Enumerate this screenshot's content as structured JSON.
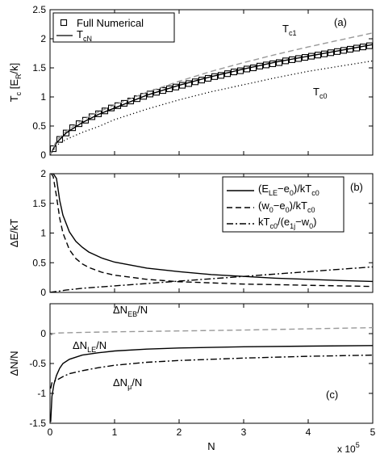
{
  "chart_data": [
    {
      "type": "line",
      "panel_label": "(a)",
      "ylabel": {
        "main": "T",
        "sub": "c",
        "rest": " [E",
        "sub2": "R",
        "rest2": "/k]"
      },
      "ylim": [
        0,
        2.5
      ],
      "yticks": [
        0,
        0.5,
        1,
        1.5,
        2,
        2.5
      ],
      "ytick_labels": [
        "0",
        "0.5",
        "1",
        "1.5",
        "2",
        "2.5"
      ],
      "xlim": [
        0,
        500000
      ],
      "grid": false,
      "legend": {
        "placement": "top-left",
        "entries": [
          {
            "label": "Full Numerical",
            "series": "full_numerical"
          },
          {
            "label_main": "T",
            "label_sub": "cN",
            "series": "tcn"
          }
        ]
      },
      "annotations": [
        {
          "main": "T",
          "sub": "c1",
          "series": "tc1"
        },
        {
          "main": "T",
          "sub": "c0",
          "series": "tc0"
        }
      ],
      "series": [
        {
          "id": "full_numerical",
          "name": "Full Numerical",
          "style": "squares",
          "color": "#000000",
          "x": [
            5000,
            15000,
            25000,
            35000,
            45000,
            55000,
            65000,
            75000,
            85000,
            95000,
            105000,
            115000,
            125000,
            135000,
            145000,
            155000,
            165000,
            175000,
            185000,
            195000,
            205000,
            215000,
            225000,
            235000,
            245000,
            255000,
            265000,
            275000,
            285000,
            295000,
            305000,
            315000,
            325000,
            335000,
            345000,
            355000,
            365000,
            375000,
            385000,
            395000,
            405000,
            415000,
            425000,
            435000,
            445000,
            455000,
            465000,
            475000,
            485000,
            495000
          ],
          "y": [
            0.11,
            0.27,
            0.38,
            0.47,
            0.54,
            0.6,
            0.66,
            0.71,
            0.76,
            0.81,
            0.85,
            0.89,
            0.93,
            0.97,
            1.01,
            1.05,
            1.08,
            1.11,
            1.14,
            1.17,
            1.2,
            1.23,
            1.26,
            1.29,
            1.32,
            1.35,
            1.37,
            1.4,
            1.43,
            1.45,
            1.48,
            1.5,
            1.53,
            1.55,
            1.57,
            1.59,
            1.62,
            1.64,
            1.66,
            1.68,
            1.7,
            1.72,
            1.74,
            1.76,
            1.78,
            1.8,
            1.82,
            1.84,
            1.86,
            1.88
          ]
        },
        {
          "id": "tcn",
          "name": "TcN",
          "style": "solid",
          "color": "#000000",
          "x": [
            0,
            10000,
            25000,
            50000,
            75000,
            100000,
            150000,
            200000,
            250000,
            300000,
            350000,
            400000,
            450000,
            500000
          ],
          "y": [
            0,
            0.21,
            0.38,
            0.56,
            0.7,
            0.81,
            1.03,
            1.2,
            1.35,
            1.48,
            1.6,
            1.7,
            1.8,
            1.9
          ]
        },
        {
          "id": "tc1",
          "name": "Tc1",
          "style": "dashed",
          "color": "#999999",
          "x": [
            0,
            10000,
            25000,
            50000,
            75000,
            100000,
            150000,
            200000,
            250000,
            300000,
            350000,
            400000,
            450000,
            500000
          ],
          "y": [
            0,
            0.25,
            0.41,
            0.6,
            0.74,
            0.86,
            1.08,
            1.27,
            1.44,
            1.59,
            1.73,
            1.86,
            1.98,
            2.1
          ]
        },
        {
          "id": "tc0",
          "name": "Tc0",
          "style": "dotted",
          "color": "#000000",
          "x": [
            0,
            10000,
            25000,
            50000,
            75000,
            100000,
            150000,
            200000,
            250000,
            300000,
            350000,
            400000,
            450000,
            500000
          ],
          "y": [
            0,
            0.17,
            0.27,
            0.39,
            0.49,
            0.61,
            0.79,
            0.95,
            1.09,
            1.21,
            1.33,
            1.44,
            1.53,
            1.62
          ]
        }
      ]
    },
    {
      "type": "line",
      "panel_label": "(b)",
      "ylabel": {
        "main": "ΔE/kT"
      },
      "ylim": [
        0,
        2
      ],
      "yticks": [
        0,
        0.5,
        1,
        1.5,
        2
      ],
      "ytick_labels": [
        "0",
        "0.5",
        "1",
        "1.5",
        "2"
      ],
      "xlim": [
        0,
        500000
      ],
      "grid": false,
      "legend": {
        "placement": "top-right",
        "entries": [
          {
            "parts": [
              [
                "(E",
                "n"
              ],
              [
                "LE",
                "s"
              ],
              [
                "−e",
                "n"
              ],
              [
                "0",
                "s"
              ],
              [
                ")/kT",
                "n"
              ],
              [
                "c0",
                "s"
              ]
            ],
            "series": "ele"
          },
          {
            "parts": [
              [
                "(w",
                "n"
              ],
              [
                "0",
                "s"
              ],
              [
                "−e",
                "n"
              ],
              [
                "0",
                "s"
              ],
              [
                ")/kT",
                "n"
              ],
              [
                "c0",
                "s"
              ]
            ],
            "series": "w0"
          },
          {
            "parts": [
              [
                "kT",
                "n"
              ],
              [
                "c0",
                "s"
              ],
              [
                "/(e",
                "n"
              ],
              [
                "1j",
                "s"
              ],
              [
                "−w",
                "n"
              ],
              [
                "0",
                "s"
              ],
              [
                ")",
                "n"
              ]
            ],
            "series": "kt"
          }
        ]
      },
      "series": [
        {
          "id": "ele",
          "name": "(ELE−e0)/kTc0",
          "style": "solid",
          "color": "#000000",
          "x": [
            2000,
            5000,
            10000,
            15000,
            20000,
            30000,
            40000,
            50000,
            60000,
            80000,
            100000,
            150000,
            200000,
            250000,
            300000,
            350000,
            400000,
            450000,
            500000
          ],
          "y": [
            2.0,
            2.0,
            1.92,
            1.55,
            1.3,
            1.02,
            0.86,
            0.76,
            0.68,
            0.58,
            0.51,
            0.41,
            0.35,
            0.3,
            0.27,
            0.24,
            0.22,
            0.2,
            0.185
          ]
        },
        {
          "id": "w0",
          "name": "(w0−e0)/kTc0",
          "style": "dashed",
          "color": "#000000",
          "x": [
            2000,
            5000,
            8000,
            10000,
            15000,
            20000,
            30000,
            40000,
            50000,
            60000,
            80000,
            100000,
            150000,
            200000,
            250000,
            300000,
            350000,
            400000,
            450000,
            500000
          ],
          "y": [
            2.0,
            1.95,
            1.75,
            1.62,
            1.25,
            1.0,
            0.72,
            0.57,
            0.48,
            0.42,
            0.34,
            0.29,
            0.22,
            0.18,
            0.16,
            0.14,
            0.13,
            0.12,
            0.11,
            0.1
          ]
        },
        {
          "id": "kt",
          "name": "kTc0/(e1j−w0)",
          "style": "dashdot",
          "color": "#000000",
          "x": [
            0,
            25000,
            50000,
            100000,
            150000,
            200000,
            250000,
            300000,
            350000,
            400000,
            450000,
            500000
          ],
          "y": [
            0.0,
            0.04,
            0.07,
            0.11,
            0.15,
            0.19,
            0.23,
            0.27,
            0.31,
            0.35,
            0.39,
            0.43
          ]
        }
      ]
    },
    {
      "type": "line",
      "panel_label": "(c)",
      "ylabel": {
        "main": "ΔN/N"
      },
      "xlabel": "N",
      "x_multiplier": {
        "main": "x 10",
        "sup": "5"
      },
      "ylim": [
        -1.5,
        0.5
      ],
      "yticks": [
        -1.5,
        -1,
        -0.5,
        0
      ],
      "ytick_labels": [
        "-1.5",
        "-1",
        "-0.5",
        "0"
      ],
      "xlim": [
        0,
        500000
      ],
      "xticks": [
        0,
        100000,
        200000,
        300000,
        400000,
        500000
      ],
      "xtick_labels": [
        "0",
        "1",
        "2",
        "3",
        "4",
        "5"
      ],
      "grid": false,
      "annotations": [
        {
          "parts": [
            [
              "ΔN",
              "n"
            ],
            [
              "EB",
              "s"
            ],
            [
              "/N",
              "n"
            ]
          ],
          "series": "neb"
        },
        {
          "parts": [
            [
              "ΔN",
              "n"
            ],
            [
              "LE",
              "s"
            ],
            [
              "/N",
              "n"
            ]
          ],
          "series": "nle"
        },
        {
          "parts": [
            [
              "ΔN",
              "n"
            ],
            [
              "μ",
              "s"
            ],
            [
              "/N",
              "n"
            ]
          ],
          "series": "nmu"
        }
      ],
      "series": [
        {
          "id": "neb",
          "name": "ΔNEB/N",
          "style": "dashed",
          "color": "#999999",
          "x": [
            0,
            5000,
            10000,
            50000,
            100000,
            200000,
            300000,
            400000,
            500000
          ],
          "y": [
            -0.03,
            0.0,
            0.01,
            0.02,
            0.03,
            0.045,
            0.06,
            0.08,
            0.1
          ]
        },
        {
          "id": "nle",
          "name": "ΔNLE/N",
          "style": "solid",
          "color": "#000000",
          "x": [
            1000,
            3000,
            6000,
            10000,
            15000,
            20000,
            30000,
            50000,
            75000,
            100000,
            150000,
            200000,
            300000,
            400000,
            500000
          ],
          "y": [
            -1.48,
            -1.05,
            -0.85,
            -0.7,
            -0.58,
            -0.5,
            -0.43,
            -0.36,
            -0.32,
            -0.29,
            -0.26,
            -0.24,
            -0.22,
            -0.21,
            -0.2
          ]
        },
        {
          "id": "nmu",
          "name": "ΔNμ/N",
          "style": "dashdot",
          "color": "#000000",
          "x": [
            1000,
            3000,
            6000,
            10000,
            15000,
            20000,
            30000,
            50000,
            75000,
            100000,
            150000,
            200000,
            300000,
            400000,
            500000
          ],
          "y": [
            -0.92,
            -0.82,
            -0.8,
            -0.78,
            -0.75,
            -0.72,
            -0.67,
            -0.62,
            -0.57,
            -0.53,
            -0.48,
            -0.45,
            -0.41,
            -0.38,
            -0.36
          ]
        }
      ]
    }
  ]
}
